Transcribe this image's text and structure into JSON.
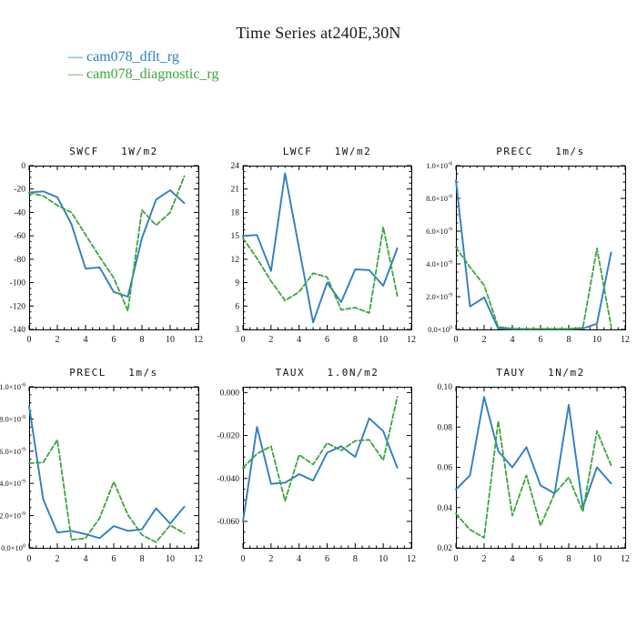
{
  "page_title": "Time Series at240E,30N",
  "legend": {
    "items": [
      {
        "label": "cam078_dflt_rg",
        "dash": "—",
        "color": "#2f7fc1"
      },
      {
        "label": "cam078_diagnostic_rg",
        "dash": "—",
        "color": "#3da43d"
      }
    ]
  },
  "colors": {
    "series1": "#2f7fc1",
    "series2": "#3da43d",
    "axis": "#000000",
    "panel_title": "#787878"
  },
  "chart_data": [
    {
      "id": "swcf",
      "type": "line",
      "title": "SWCF",
      "unit": "1W/m2",
      "x": [
        0,
        1,
        2,
        3,
        4,
        5,
        6,
        7,
        8,
        9,
        10,
        11
      ],
      "xlim": [
        0,
        12
      ],
      "xticks": [
        0,
        2,
        4,
        6,
        8,
        10,
        12
      ],
      "xtick_labels": [
        "0",
        "2",
        "4",
        "6",
        "8",
        "10",
        "12"
      ],
      "x_minor_step": 0.5,
      "ylim": [
        -140,
        0
      ],
      "yticks": [
        0,
        -20,
        -40,
        -60,
        -80,
        -100,
        -120,
        -140
      ],
      "ytick_labels": [
        "0",
        "-20",
        "-40",
        "-60",
        "-80",
        "-100",
        "-120",
        "-140"
      ],
      "y_minor_step": 5,
      "series": [
        {
          "name": "cam078_dflt_rg",
          "style": "solid",
          "values": [
            -23,
            -22,
            -27,
            -50,
            -88,
            -87,
            -108,
            -112,
            -62,
            -29,
            -21,
            -32
          ]
        },
        {
          "name": "cam078_diagnostic_rg",
          "style": "dashed",
          "values": [
            -23,
            -26,
            -34,
            -40,
            -59,
            -78,
            -96,
            -124,
            -38,
            -51,
            -40,
            -9
          ]
        }
      ]
    },
    {
      "id": "lwcf",
      "type": "line",
      "title": "LWCF",
      "unit": "1W/m2",
      "x": [
        0,
        1,
        2,
        3,
        4,
        5,
        6,
        7,
        8,
        9,
        10,
        11
      ],
      "xlim": [
        0,
        12
      ],
      "xticks": [
        0,
        2,
        4,
        6,
        8,
        10,
        12
      ],
      "xtick_labels": [
        "0",
        "2",
        "4",
        "6",
        "8",
        "10",
        "12"
      ],
      "x_minor_step": 0.5,
      "ylim": [
        3,
        24
      ],
      "yticks": [
        24,
        21,
        18,
        15,
        12,
        9,
        6,
        3
      ],
      "ytick_labels": [
        "24",
        "21",
        "18",
        "15",
        "12",
        "9",
        "6",
        "3"
      ],
      "y_minor_step": 0.75,
      "series": [
        {
          "name": "cam078_dflt_rg",
          "style": "solid",
          "values": [
            15.0,
            15.1,
            10.5,
            23.0,
            13.4,
            3.9,
            9.0,
            6.5,
            10.7,
            10.6,
            8.6,
            13.4
          ]
        },
        {
          "name": "cam078_diagnostic_rg",
          "style": "dashed",
          "values": [
            14.7,
            12.1,
            9.2,
            6.7,
            7.8,
            10.2,
            9.7,
            5.5,
            5.8,
            5.1,
            16.1,
            7.3
          ]
        }
      ]
    },
    {
      "id": "precc",
      "type": "line",
      "title": "PRECC",
      "unit": "1m/s",
      "x": [
        0,
        1,
        2,
        3,
        4,
        5,
        6,
        7,
        8,
        9,
        10,
        11
      ],
      "xlim": [
        0,
        12
      ],
      "xticks": [
        0,
        2,
        4,
        6,
        8,
        10,
        12
      ],
      "xtick_labels": [
        "0",
        "2",
        "4",
        "6",
        "8",
        "10",
        "12"
      ],
      "x_minor_step": 0.5,
      "ylim": [
        0,
        1e-08
      ],
      "yticks": [
        1e-08,
        8e-09,
        6e-09,
        4e-09,
        2e-09,
        0
      ],
      "ytick_labels": [
        "1.0×10^-8",
        "8.0×10^-9",
        "6.0×10^-9",
        "4.0×10^-9",
        "2.0×10^-9",
        "0.0×10^0"
      ],
      "y_minor_step": 5e-10,
      "series": [
        {
          "name": "cam078_dflt_rg",
          "style": "solid",
          "values": [
            9.1e-09,
            1.4e-09,
            1.95e-09,
            5e-11,
            2e-11,
            2e-11,
            2e-11,
            2e-11,
            2e-11,
            5e-11,
            3.5e-10,
            4.7e-09
          ]
        },
        {
          "name": "cam078_diagnostic_rg",
          "style": "dashed",
          "values": [
            5e-09,
            3.8e-09,
            2.7e-09,
            1.5e-10,
            5e-11,
            3e-11,
            3e-11,
            3e-11,
            3e-11,
            1e-10,
            4.95e-09,
            2e-10
          ]
        }
      ]
    },
    {
      "id": "precl",
      "type": "line",
      "title": "PRECL",
      "unit": "1m/s",
      "x": [
        0,
        1,
        2,
        3,
        4,
        5,
        6,
        7,
        8,
        9,
        10,
        11
      ],
      "xlim": [
        0,
        12
      ],
      "xticks": [
        0,
        2,
        4,
        6,
        8,
        10,
        12
      ],
      "xtick_labels": [
        "0",
        "2",
        "4",
        "6",
        "8",
        "10",
        "12"
      ],
      "x_minor_step": 0.5,
      "ylim": [
        0,
        1e-08
      ],
      "yticks": [
        1e-08,
        8e-09,
        6e-09,
        4e-09,
        2e-09,
        0
      ],
      "ytick_labels": [
        "1.0×10^-8",
        "8.0×10^-9",
        "6.0×10^-9",
        "4.0×10^-9",
        "2.0×10^-9",
        "0.0×10^0"
      ],
      "y_minor_step": 5e-10,
      "series": [
        {
          "name": "cam078_dflt_rg",
          "style": "solid",
          "values": [
            8.8e-09,
            3e-09,
            9.5e-10,
            1.05e-09,
            8.5e-10,
            6e-10,
            1.35e-09,
            1.05e-09,
            1.15e-09,
            2.45e-09,
            1.5e-09,
            2.55e-09
          ]
        },
        {
          "name": "cam078_diagnostic_rg",
          "style": "dashed",
          "values": [
            5.25e-09,
            5.3e-09,
            6.7e-09,
            5e-10,
            6e-10,
            1.85e-09,
            4.1e-09,
            2.05e-09,
            8e-10,
            3.5e-10,
            1.4e-09,
            9e-10
          ]
        }
      ]
    },
    {
      "id": "taux",
      "type": "line",
      "title": "TAUX",
      "unit": "1.0N/m2",
      "x": [
        0,
        1,
        2,
        3,
        4,
        5,
        6,
        7,
        8,
        9,
        10,
        11
      ],
      "xlim": [
        0,
        12
      ],
      "xticks": [
        0,
        2,
        4,
        6,
        8,
        10,
        12
      ],
      "xtick_labels": [
        "0",
        "2",
        "4",
        "6",
        "8",
        "10",
        "12"
      ],
      "x_minor_step": 0.5,
      "ylim": [
        -0.0723,
        0.0027
      ],
      "yticks": [
        0,
        -0.02,
        -0.04,
        -0.06
      ],
      "ytick_labels": [
        "0.000",
        "-0.020",
        "-0.040",
        "-0.060"
      ],
      "y_minor_step": 0.005,
      "series": [
        {
          "name": "cam078_dflt_rg",
          "style": "solid",
          "values": [
            -0.06,
            -0.016,
            -0.0425,
            -0.042,
            -0.038,
            -0.041,
            -0.028,
            -0.025,
            -0.03,
            -0.012,
            -0.018,
            -0.035
          ]
        },
        {
          "name": "cam078_diagnostic_rg",
          "style": "dashed",
          "values": [
            -0.035,
            -0.0285,
            -0.025,
            -0.0505,
            -0.029,
            -0.0335,
            -0.0235,
            -0.027,
            -0.0225,
            -0.022,
            -0.0315,
            -0.002
          ]
        }
      ]
    },
    {
      "id": "tauy",
      "type": "line",
      "title": "TAUY",
      "unit": "1N/m2",
      "x": [
        0,
        1,
        2,
        3,
        4,
        5,
        6,
        7,
        8,
        9,
        10,
        11
      ],
      "xlim": [
        0,
        12
      ],
      "xticks": [
        0,
        2,
        4,
        6,
        8,
        10,
        12
      ],
      "xtick_labels": [
        "0",
        "2",
        "4",
        "6",
        "8",
        "10",
        "12"
      ],
      "x_minor_step": 0.5,
      "ylim": [
        0.02,
        0.1
      ],
      "yticks": [
        0.1,
        0.08,
        0.06,
        0.04,
        0.02
      ],
      "ytick_labels": [
        "0.10",
        "0.08",
        "0.06",
        "0.04",
        "0.02"
      ],
      "y_minor_step": 0.005,
      "series": [
        {
          "name": "cam078_dflt_rg",
          "style": "solid",
          "values": [
            0.049,
            0.056,
            0.095,
            0.068,
            0.06,
            0.07,
            0.051,
            0.047,
            0.091,
            0.04,
            0.06,
            0.052
          ]
        },
        {
          "name": "cam078_diagnostic_rg",
          "style": "dashed",
          "values": [
            0.037,
            0.029,
            0.025,
            0.083,
            0.036,
            0.056,
            0.031,
            0.047,
            0.055,
            0.038,
            0.078,
            0.061
          ]
        }
      ]
    }
  ]
}
